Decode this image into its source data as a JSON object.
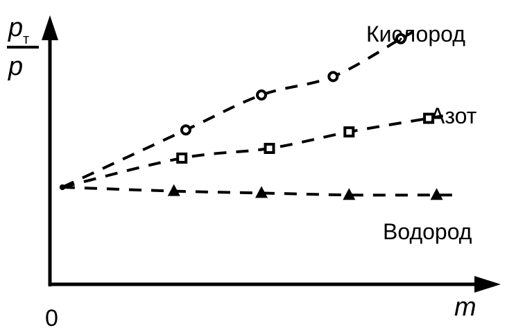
{
  "chart_data": {
    "type": "line",
    "title": "",
    "xlabel": "m",
    "ylabel": {
      "numerator_base": "p",
      "numerator_subscript": "т",
      "denominator": "p"
    },
    "origin_label": "0",
    "xlim": [
      0,
      10
    ],
    "ylim": [
      0,
      2.5
    ],
    "grid": false,
    "legend": "inline labels at right end of each series",
    "line_style": "dashed",
    "colors": {
      "ink": "#000000",
      "background": "#ffffff"
    },
    "series": [
      {
        "name": "Кислород",
        "marker": "circle",
        "x": [
          0,
          3.1,
          5.0,
          6.8,
          8.5
        ],
        "y": [
          1.0,
          1.59,
          1.95,
          2.14,
          2.53
        ]
      },
      {
        "name": "Азот",
        "marker": "square",
        "x": [
          0,
          3.0,
          5.2,
          7.2,
          9.2
        ],
        "y": [
          1.0,
          1.3,
          1.4,
          1.57,
          1.71
        ]
      },
      {
        "name": "Водород",
        "marker": "triangle",
        "x": [
          0,
          2.8,
          5.0,
          7.2,
          9.4
        ],
        "y": [
          1.0,
          0.96,
          0.94,
          0.92,
          0.92
        ]
      }
    ]
  }
}
